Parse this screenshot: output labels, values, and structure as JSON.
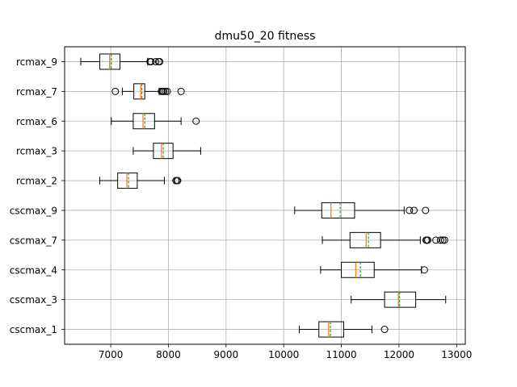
{
  "chart_data": {
    "type": "boxplot",
    "orientation": "horizontal",
    "title": "dmu50_20 fitness",
    "xlim": [
      6200,
      13150
    ],
    "xticks": [
      7000,
      8000,
      9000,
      10000,
      11000,
      12000,
      13000
    ],
    "grid": true,
    "legend": "none",
    "colors": {
      "box": "#000000",
      "median": "#ff7f0e",
      "mean": "#2ca02c",
      "grid": "#b0b0b0"
    },
    "series": [
      {
        "name": "rcmax_9",
        "whislo": 6480,
        "q1": 6810,
        "median": 6980,
        "mean": 7010,
        "q3": 7160,
        "whishi": 7640,
        "fliers": [
          7680,
          7700,
          7780,
          7830,
          7850
        ]
      },
      {
        "name": "rcmax_7",
        "whislo": 7200,
        "q1": 7400,
        "median": 7520,
        "mean": 7540,
        "q3": 7590,
        "whishi": 7840,
        "fliers": [
          7080,
          7880,
          7900,
          7920,
          7950,
          7980,
          8220
        ]
      },
      {
        "name": "rcmax_6",
        "whislo": 7010,
        "q1": 7390,
        "median": 7560,
        "mean": 7590,
        "q3": 7760,
        "whishi": 8220,
        "fliers": [
          8480
        ]
      },
      {
        "name": "rcmax_3",
        "whislo": 7390,
        "q1": 7740,
        "median": 7880,
        "mean": 7910,
        "q3": 8080,
        "whishi": 8560,
        "fliers": []
      },
      {
        "name": "rcmax_2",
        "whislo": 6810,
        "q1": 7120,
        "median": 7280,
        "mean": 7310,
        "q3": 7460,
        "whishi": 7930,
        "fliers": [
          8130,
          8150,
          8160
        ]
      },
      {
        "name": "cscmax_9",
        "whislo": 10190,
        "q1": 10660,
        "median": 10820,
        "mean": 10980,
        "q3": 11230,
        "whishi": 12090,
        "fliers": [
          12180,
          12260,
          12460
        ]
      },
      {
        "name": "cscmax_7",
        "whislo": 10670,
        "q1": 11150,
        "median": 11430,
        "mean": 11470,
        "q3": 11680,
        "whishi": 12370,
        "fliers": [
          12470,
          12480,
          12500,
          12640,
          12720,
          12760,
          12790
        ]
      },
      {
        "name": "cscmax_4",
        "whislo": 10640,
        "q1": 11000,
        "median": 11250,
        "mean": 11330,
        "q3": 11570,
        "whishi": 12390,
        "fliers": [
          12440
        ]
      },
      {
        "name": "cscmax_3",
        "whislo": 11170,
        "q1": 11750,
        "median": 11990,
        "mean": 12010,
        "q3": 12290,
        "whishi": 12810,
        "fliers": []
      },
      {
        "name": "cscmax_1",
        "whislo": 10270,
        "q1": 10610,
        "median": 10780,
        "mean": 10810,
        "q3": 11040,
        "whishi": 11530,
        "fliers": [
          11750
        ]
      }
    ]
  }
}
